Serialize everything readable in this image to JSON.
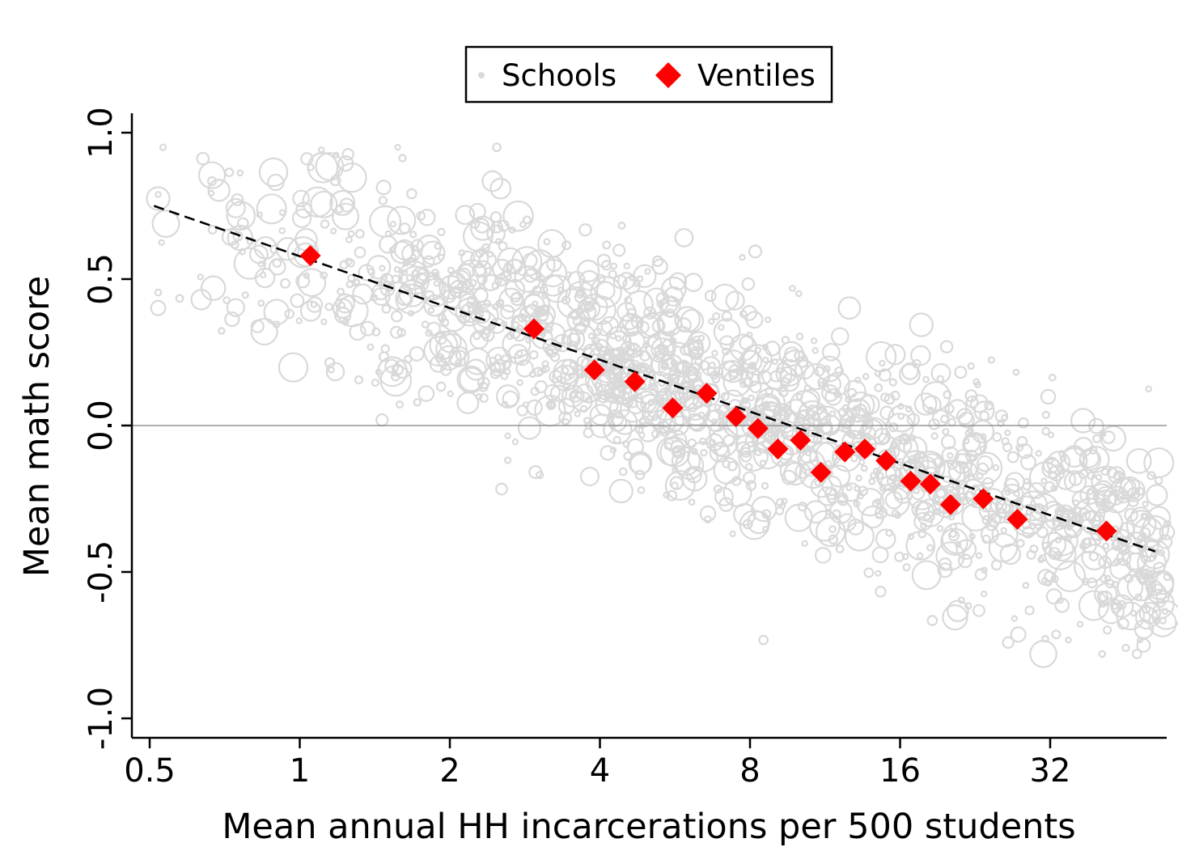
{
  "chart_data": {
    "type": "scatter",
    "xlabel": "Mean annual HH incarcerations per 500 students",
    "ylabel": "Mean math score",
    "x_scale": "log2",
    "xlim": [
      0.47,
      58
    ],
    "ylim": [
      -1.07,
      1.07
    ],
    "x_ticks": [
      0.5,
      1,
      2,
      4,
      8,
      16,
      32
    ],
    "x_tick_labels": [
      "0.5",
      "1",
      "2",
      "4",
      "8",
      "16",
      "32"
    ],
    "y_ticks": [
      1.0,
      0.5,
      0.0,
      -0.5,
      -1.0
    ],
    "y_tick_labels": [
      "1.0",
      "0.5",
      "0.0",
      "-0.5",
      "-1.0"
    ],
    "reference_line_y": 0,
    "legend": {
      "position": "top-center",
      "entries": [
        {
          "label": "Schools",
          "marker": "small-circle",
          "color": "#d9d9d9"
        },
        {
          "label": "Ventiles",
          "marker": "diamond",
          "color": "#ff0000"
        }
      ]
    },
    "series": [
      {
        "name": "Ventiles",
        "marker": "diamond",
        "color": "#ff0000",
        "points": [
          {
            "x": 1.05,
            "y": 0.58
          },
          {
            "x": 2.95,
            "y": 0.33
          },
          {
            "x": 3.9,
            "y": 0.19
          },
          {
            "x": 4.7,
            "y": 0.15
          },
          {
            "x": 5.6,
            "y": 0.06
          },
          {
            "x": 6.55,
            "y": 0.11
          },
          {
            "x": 7.5,
            "y": 0.03
          },
          {
            "x": 8.3,
            "y": -0.01
          },
          {
            "x": 9.1,
            "y": -0.08
          },
          {
            "x": 10.1,
            "y": -0.05
          },
          {
            "x": 11.1,
            "y": -0.16
          },
          {
            "x": 12.4,
            "y": -0.09
          },
          {
            "x": 13.6,
            "y": -0.08
          },
          {
            "x": 15.0,
            "y": -0.12
          },
          {
            "x": 16.8,
            "y": -0.19
          },
          {
            "x": 18.4,
            "y": -0.2
          },
          {
            "x": 20.2,
            "y": -0.27
          },
          {
            "x": 23.5,
            "y": -0.25
          },
          {
            "x": 27.5,
            "y": -0.32
          },
          {
            "x": 41.5,
            "y": -0.36
          }
        ]
      },
      {
        "name": "Fit",
        "type": "line",
        "style": "dashed",
        "color": "#000000",
        "points": [
          {
            "x": 0.51,
            "y": 0.75
          },
          {
            "x": 52.0,
            "y": -0.43
          }
        ]
      },
      {
        "name": "Schools",
        "marker": "hollow-circle",
        "color": "#d9d9d9",
        "generated": true,
        "count": 1600,
        "note": "individual school points are too numerous to read; rendered as a dense cloud centred on the fit line"
      }
    ]
  },
  "colors": {
    "schools": "#d9d9d9",
    "ventiles": "#ff0000",
    "fit_line": "#000000",
    "zero_line": "#808080",
    "axis": "#000000"
  }
}
